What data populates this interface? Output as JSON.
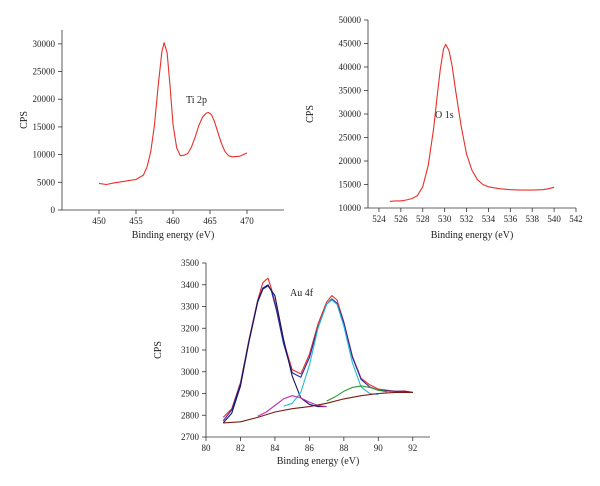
{
  "chart_data": [
    {
      "type": "line",
      "id": "ti2p",
      "annotation": "Ti 2p",
      "xlabel": "Binding energy (eV)",
      "ylabel": "CPS",
      "xlim": [
        445,
        475
      ],
      "ylim": [
        0,
        32500
      ],
      "xticks": [
        450,
        455,
        460,
        465,
        470
      ],
      "yticks": [
        0,
        5000,
        10000,
        15000,
        20000,
        25000,
        30000
      ],
      "series": [
        {
          "color": "#e8302b",
          "x": [
            450,
            451,
            452,
            453,
            454,
            455,
            456,
            456.5,
            457,
            457.5,
            458,
            458.5,
            458.8,
            459.2,
            459.6,
            460,
            460.5,
            461,
            461.5,
            462,
            462.5,
            463,
            463.5,
            464,
            464.5,
            464.8,
            465.2,
            465.6,
            466,
            466.5,
            467,
            467.5,
            468,
            469,
            470
          ],
          "values": [
            4800,
            4600,
            4900,
            5100,
            5300,
            5500,
            6300,
            7800,
            10600,
            15400,
            22500,
            28600,
            30200,
            28400,
            22500,
            15500,
            11200,
            9800,
            9900,
            10200,
            11400,
            13200,
            15300,
            16800,
            17500,
            17600,
            17200,
            16000,
            14300,
            12200,
            10600,
            9800,
            9600,
            9700,
            10300
          ]
        }
      ]
    },
    {
      "type": "line",
      "id": "o1s",
      "annotation": "O 1s",
      "xlabel": "Binding energy (eV)",
      "ylabel": "CPS",
      "xlim": [
        523,
        542
      ],
      "ylim": [
        10000,
        50000
      ],
      "xticks": [
        524,
        526,
        528,
        530,
        532,
        534,
        536,
        538,
        540,
        542
      ],
      "yticks": [
        10000,
        15000,
        20000,
        25000,
        30000,
        35000,
        40000,
        45000,
        50000
      ],
      "series": [
        {
          "color": "#e8302b",
          "x": [
            525,
            525.5,
            526,
            526.5,
            527,
            527.5,
            528,
            528.5,
            529,
            529.3,
            529.6,
            529.9,
            530.1,
            530.4,
            530.7,
            531,
            531.5,
            532,
            532.5,
            533,
            533.5,
            534,
            535,
            536,
            537,
            538,
            539,
            539.5,
            540
          ],
          "values": [
            11400,
            11500,
            11500,
            11700,
            12000,
            12600,
            14500,
            19000,
            27000,
            33500,
            39500,
            43800,
            44800,
            43500,
            40000,
            35000,
            27500,
            21500,
            18000,
            16000,
            15000,
            14500,
            14100,
            13900,
            13800,
            13800,
            13900,
            14100,
            14400
          ]
        }
      ]
    },
    {
      "type": "line",
      "id": "au4f",
      "annotation": "Au 4f",
      "xlabel": "Binding energy (eV)",
      "ylabel": "CPS",
      "xlim": [
        80,
        93
      ],
      "ylim": [
        2700,
        3500
      ],
      "xticks": [
        80,
        82,
        84,
        86,
        88,
        90,
        92
      ],
      "yticks": [
        2700,
        2800,
        2900,
        3000,
        3100,
        3200,
        3300,
        3400,
        3500
      ],
      "series": [
        {
          "color": "#e8302b",
          "x": [
            81,
            81.5,
            82,
            82.5,
            83,
            83.3,
            83.6,
            83.8,
            84.1,
            84.5,
            85,
            85.5,
            86,
            86.5,
            87,
            87.3,
            87.6,
            88,
            88.5,
            89,
            89.5,
            90,
            90.5,
            91,
            91.5,
            92
          ],
          "values": [
            2790,
            2830,
            2950,
            3150,
            3330,
            3410,
            3430,
            3380,
            3290,
            3140,
            3010,
            2990,
            3080,
            3220,
            3320,
            3350,
            3330,
            3230,
            3070,
            2970,
            2940,
            2920,
            2915,
            2910,
            2912,
            2905
          ]
        },
        {
          "color": "#1f2aa8",
          "x": [
            81,
            81.5,
            82,
            82.5,
            83,
            83.3,
            83.6,
            83.8,
            84.1,
            84.5,
            85,
            85.5,
            86,
            86.5,
            87,
            87.3,
            87.6,
            88,
            88.5,
            89,
            89.5,
            90,
            90.5,
            91,
            91.5,
            92
          ],
          "values": [
            2775,
            2825,
            2945,
            3145,
            3325,
            3385,
            3400,
            3370,
            3280,
            3130,
            2995,
            2975,
            3065,
            3205,
            3310,
            3335,
            3315,
            3225,
            3065,
            2965,
            2930,
            2915,
            2912,
            2910,
            2910,
            2905
          ]
        },
        {
          "color": "#17125e",
          "x": [
            81,
            81.5,
            82,
            82.5,
            83,
            83.3,
            83.6,
            84,
            84.5,
            85,
            85.5,
            86,
            86.5,
            87
          ],
          "values": [
            2765,
            2810,
            2935,
            3140,
            3320,
            3380,
            3395,
            3350,
            3150,
            2980,
            2880,
            2850,
            2840,
            2840
          ]
        },
        {
          "color": "#2bb8d8",
          "x": [
            84.5,
            85,
            85.5,
            86,
            86.5,
            87,
            87.3,
            87.6,
            88,
            88.5,
            89,
            89.5,
            90
          ],
          "values": [
            2842,
            2855,
            2905,
            3030,
            3200,
            3310,
            3330,
            3310,
            3210,
            3040,
            2930,
            2900,
            2895
          ]
        },
        {
          "color": "#c02fb0",
          "x": [
            83,
            83.5,
            84,
            84.5,
            85,
            85.5,
            86,
            86.5,
            87
          ],
          "values": [
            2795,
            2815,
            2845,
            2875,
            2890,
            2880,
            2860,
            2845,
            2840
          ]
        },
        {
          "color": "#2e9a2e",
          "x": [
            87,
            87.5,
            88,
            88.5,
            89,
            89.5,
            90,
            90.5
          ],
          "values": [
            2865,
            2885,
            2910,
            2928,
            2935,
            2928,
            2915,
            2908
          ]
        },
        {
          "color": "#7a1a1a",
          "x": [
            81,
            82,
            83,
            84,
            85,
            86,
            87,
            88,
            89,
            90,
            91,
            92
          ],
          "values": [
            2765,
            2770,
            2790,
            2815,
            2830,
            2840,
            2855,
            2875,
            2890,
            2900,
            2905,
            2905
          ]
        }
      ]
    }
  ]
}
